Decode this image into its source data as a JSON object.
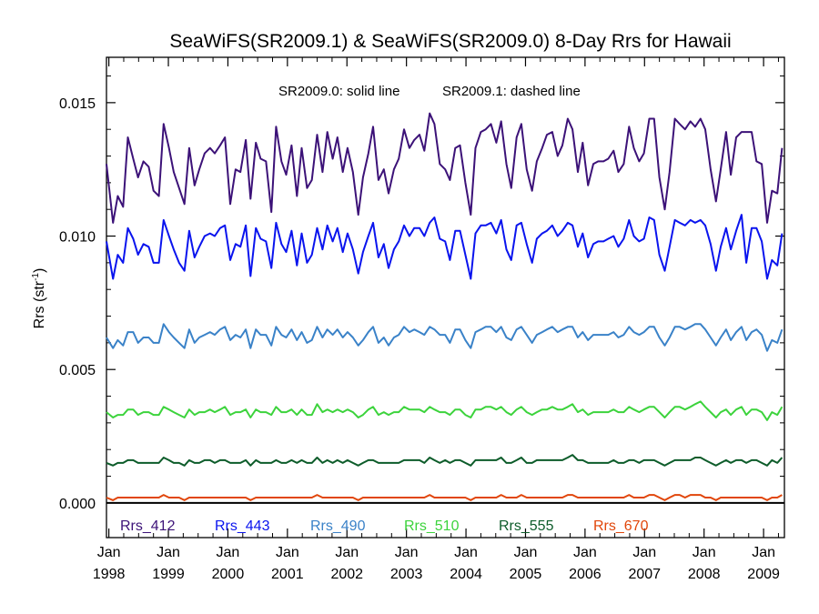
{
  "chart_data": {
    "type": "line",
    "title": "SeaWiFS(SR2009.1) & SeaWiFS(SR2009.0) 8-Day Rrs for Hawaii",
    "ylabel_main": "Rrs (str",
    "ylabel_sup": "-1",
    "ylabel_close": ")",
    "annotation_solid": "SR2009.0: solid line",
    "annotation_dashed": "SR2009.1: dashed line",
    "ylim": [
      -0.0013,
      0.0167
    ],
    "xlim": [
      1997.96,
      2009.35
    ],
    "yticks": [
      {
        "value": 0.0,
        "label": "0.000"
      },
      {
        "value": 0.005,
        "label": "0.005"
      },
      {
        "value": 0.01,
        "label": "0.010"
      },
      {
        "value": 0.015,
        "label": "0.015"
      }
    ],
    "xticks": [
      {
        "value": 1998.0,
        "month": "Jan",
        "year": "1998"
      },
      {
        "value": 1999.0,
        "month": "Jan",
        "year": "1999"
      },
      {
        "value": 2000.0,
        "month": "Jan",
        "year": "2000"
      },
      {
        "value": 2001.0,
        "month": "Jan",
        "year": "2001"
      },
      {
        "value": 2002.0,
        "month": "Jan",
        "year": "2002"
      },
      {
        "value": 2003.0,
        "month": "Jan",
        "year": "2003"
      },
      {
        "value": 2004.0,
        "month": "Jan",
        "year": "2004"
      },
      {
        "value": 2005.0,
        "month": "Jan",
        "year": "2005"
      },
      {
        "value": 2006.0,
        "month": "Jan",
        "year": "2006"
      },
      {
        "value": 2007.0,
        "month": "Jan",
        "year": "2007"
      },
      {
        "value": 2008.0,
        "month": "Jan",
        "year": "2008"
      },
      {
        "value": 2009.0,
        "month": "Jan",
        "year": "2009"
      }
    ],
    "grid": false,
    "legend_placement": "bottom",
    "x": [
      1997.96,
      1998.07,
      1998.15,
      1998.24,
      1998.32,
      1998.41,
      1998.49,
      1998.58,
      1998.67,
      1998.75,
      1998.84,
      1998.92,
      1999.01,
      1999.09,
      1999.18,
      1999.27,
      1999.35,
      1999.44,
      1999.52,
      1999.61,
      1999.7,
      1999.78,
      1999.87,
      1999.95,
      2000.04,
      2000.13,
      2000.21,
      2000.3,
      2000.38,
      2000.47,
      2000.55,
      2000.64,
      2000.73,
      2000.81,
      2000.9,
      2000.98,
      2001.07,
      2001.16,
      2001.24,
      2001.33,
      2001.41,
      2001.5,
      2001.59,
      2001.67,
      2001.76,
      2001.84,
      2001.93,
      2002.01,
      2002.1,
      2002.19,
      2002.27,
      2002.36,
      2002.44,
      2002.53,
      2002.62,
      2002.7,
      2002.79,
      2002.87,
      2002.96,
      2003.05,
      2003.13,
      2003.22,
      2003.3,
      2003.39,
      2003.47,
      2003.56,
      2003.65,
      2003.73,
      2003.82,
      2003.9,
      2003.99,
      2004.08,
      2004.16,
      2004.25,
      2004.33,
      2004.42,
      2004.51,
      2004.59,
      2004.68,
      2004.76,
      2004.85,
      2004.93,
      2005.02,
      2005.11,
      2005.19,
      2005.28,
      2005.36,
      2005.45,
      2005.54,
      2005.62,
      2005.71,
      2005.79,
      2005.88,
      2005.96,
      2006.05,
      2006.14,
      2006.22,
      2006.31,
      2006.39,
      2006.48,
      2006.56,
      2006.65,
      2006.74,
      2006.82,
      2006.91,
      2006.99,
      2007.08,
      2007.16,
      2007.25,
      2007.34,
      2007.42,
      2007.51,
      2007.59,
      2007.68,
      2007.77,
      2007.85,
      2007.94,
      2008.02,
      2008.11,
      2008.2,
      2008.28,
      2008.37,
      2008.45,
      2008.54,
      2008.63,
      2008.71,
      2008.8,
      2008.88,
      2008.97,
      2009.06,
      2009.14,
      2009.23,
      2009.31
    ],
    "series": [
      {
        "name": "Rrs_412",
        "color": "#3c1278",
        "values": [
          0.0127,
          0.0105,
          0.0115,
          0.0111,
          0.0137,
          0.0129,
          0.0122,
          0.0128,
          0.0126,
          0.0117,
          0.0115,
          0.0142,
          0.0133,
          0.0124,
          0.0118,
          0.0112,
          0.0133,
          0.0119,
          0.0125,
          0.0131,
          0.0133,
          0.0131,
          0.0134,
          0.0137,
          0.0112,
          0.0125,
          0.0124,
          0.0136,
          0.0114,
          0.0135,
          0.0129,
          0.0128,
          0.0109,
          0.0141,
          0.0128,
          0.0123,
          0.0134,
          0.0115,
          0.0133,
          0.0118,
          0.0121,
          0.0138,
          0.0124,
          0.0139,
          0.0129,
          0.0137,
          0.0124,
          0.0133,
          0.0124,
          0.0108,
          0.0122,
          0.0131,
          0.0141,
          0.0121,
          0.0125,
          0.0116,
          0.0125,
          0.0129,
          0.014,
          0.0133,
          0.0136,
          0.0138,
          0.0132,
          0.0146,
          0.0142,
          0.0127,
          0.0125,
          0.0121,
          0.0133,
          0.0134,
          0.012,
          0.0108,
          0.0133,
          0.0139,
          0.014,
          0.0142,
          0.0135,
          0.0143,
          0.0127,
          0.0118,
          0.0137,
          0.0142,
          0.0125,
          0.0117,
          0.0128,
          0.0133,
          0.0138,
          0.0139,
          0.013,
          0.0134,
          0.0144,
          0.014,
          0.0124,
          0.0135,
          0.0119,
          0.0127,
          0.0128,
          0.0128,
          0.0129,
          0.0132,
          0.0124,
          0.0127,
          0.0141,
          0.0133,
          0.0128,
          0.0131,
          0.0144,
          0.0144,
          0.0122,
          0.011,
          0.0124,
          0.0144,
          0.0142,
          0.014,
          0.0143,
          0.0141,
          0.0144,
          0.014,
          0.0125,
          0.0113,
          0.0125,
          0.0139,
          0.0123,
          0.0137,
          0.0139,
          0.0139,
          0.0139,
          0.0128,
          0.0127,
          0.0105,
          0.0117,
          0.0116,
          0.0133
        ]
      },
      {
        "name": "Rrs_443",
        "color": "#0a14ee",
        "values": [
          0.0098,
          0.0084,
          0.0093,
          0.009,
          0.0103,
          0.0099,
          0.0093,
          0.0097,
          0.0096,
          0.009,
          0.009,
          0.0106,
          0.01,
          0.0095,
          0.009,
          0.0087,
          0.0102,
          0.0092,
          0.0096,
          0.01,
          0.0101,
          0.01,
          0.0103,
          0.0104,
          0.0091,
          0.0097,
          0.0096,
          0.0104,
          0.0085,
          0.0103,
          0.0099,
          0.0098,
          0.0088,
          0.0105,
          0.0097,
          0.0094,
          0.0102,
          0.0089,
          0.0101,
          0.009,
          0.0093,
          0.0103,
          0.0095,
          0.0104,
          0.0098,
          0.0103,
          0.0094,
          0.0101,
          0.0095,
          0.0086,
          0.0094,
          0.01,
          0.0105,
          0.0092,
          0.0097,
          0.0088,
          0.0095,
          0.0098,
          0.0104,
          0.01,
          0.0103,
          0.0103,
          0.01,
          0.0105,
          0.0107,
          0.0099,
          0.0098,
          0.0091,
          0.0102,
          0.0102,
          0.0093,
          0.0084,
          0.0101,
          0.0104,
          0.0104,
          0.0105,
          0.0101,
          0.0106,
          0.0095,
          0.0091,
          0.0104,
          0.0105,
          0.0097,
          0.009,
          0.0099,
          0.0101,
          0.0102,
          0.0104,
          0.01,
          0.0102,
          0.0105,
          0.0104,
          0.0096,
          0.0101,
          0.0092,
          0.0097,
          0.0098,
          0.0098,
          0.0099,
          0.01,
          0.0096,
          0.0099,
          0.0106,
          0.01,
          0.0098,
          0.0099,
          0.0107,
          0.0106,
          0.0093,
          0.0087,
          0.0096,
          0.0106,
          0.0105,
          0.0104,
          0.0106,
          0.0105,
          0.0106,
          0.0104,
          0.0097,
          0.0087,
          0.0096,
          0.0103,
          0.0095,
          0.0102,
          0.0108,
          0.009,
          0.0103,
          0.0103,
          0.0098,
          0.0084,
          0.0091,
          0.0089,
          0.0101
        ]
      },
      {
        "name": "Rrs_490",
        "color": "#3a82c8",
        "values": [
          0.0062,
          0.0058,
          0.0061,
          0.0059,
          0.0064,
          0.0064,
          0.006,
          0.0062,
          0.0062,
          0.006,
          0.006,
          0.0067,
          0.0064,
          0.0062,
          0.006,
          0.0058,
          0.0065,
          0.006,
          0.0062,
          0.0063,
          0.0064,
          0.0063,
          0.0065,
          0.0066,
          0.0061,
          0.0063,
          0.0062,
          0.0065,
          0.0058,
          0.0065,
          0.0063,
          0.0063,
          0.0059,
          0.0066,
          0.0063,
          0.0062,
          0.0065,
          0.0061,
          0.0064,
          0.006,
          0.0061,
          0.0066,
          0.0062,
          0.0065,
          0.0063,
          0.0065,
          0.0062,
          0.0064,
          0.0062,
          0.0059,
          0.0061,
          0.0064,
          0.0066,
          0.006,
          0.0062,
          0.0059,
          0.0062,
          0.0063,
          0.0066,
          0.0064,
          0.0065,
          0.0064,
          0.0063,
          0.0066,
          0.0065,
          0.0063,
          0.0063,
          0.006,
          0.0065,
          0.0065,
          0.0061,
          0.0058,
          0.0064,
          0.0065,
          0.0066,
          0.0066,
          0.0064,
          0.0066,
          0.0062,
          0.0061,
          0.0065,
          0.0066,
          0.0063,
          0.006,
          0.0063,
          0.0064,
          0.0065,
          0.0066,
          0.0064,
          0.0065,
          0.0066,
          0.0066,
          0.0062,
          0.0064,
          0.0061,
          0.0063,
          0.0063,
          0.0063,
          0.0063,
          0.0064,
          0.0062,
          0.0063,
          0.0066,
          0.0064,
          0.0063,
          0.0064,
          0.0066,
          0.0066,
          0.0062,
          0.0059,
          0.0062,
          0.0066,
          0.0066,
          0.0065,
          0.0066,
          0.0067,
          0.0067,
          0.0065,
          0.0062,
          0.0059,
          0.0062,
          0.0065,
          0.0061,
          0.0064,
          0.0066,
          0.0061,
          0.0064,
          0.0065,
          0.0063,
          0.0057,
          0.0061,
          0.006,
          0.0065
        ]
      },
      {
        "name": "Rrs_510",
        "color": "#3cd33c",
        "values": [
          0.0034,
          0.0032,
          0.0033,
          0.0033,
          0.0035,
          0.0035,
          0.0033,
          0.0034,
          0.0034,
          0.0033,
          0.0033,
          0.0036,
          0.0035,
          0.0034,
          0.0033,
          0.0032,
          0.0035,
          0.0033,
          0.0034,
          0.0034,
          0.0035,
          0.0034,
          0.0035,
          0.0036,
          0.0033,
          0.0034,
          0.0034,
          0.0035,
          0.0032,
          0.0035,
          0.0034,
          0.0034,
          0.0033,
          0.0036,
          0.0034,
          0.0034,
          0.0035,
          0.0033,
          0.0035,
          0.0033,
          0.0033,
          0.0037,
          0.0034,
          0.0035,
          0.0034,
          0.0035,
          0.0034,
          0.0035,
          0.0034,
          0.0032,
          0.0033,
          0.0035,
          0.0036,
          0.0033,
          0.0034,
          0.0033,
          0.0034,
          0.0034,
          0.0036,
          0.0035,
          0.0035,
          0.0035,
          0.0034,
          0.0036,
          0.0035,
          0.0034,
          0.0034,
          0.0033,
          0.0035,
          0.0035,
          0.0033,
          0.0032,
          0.0035,
          0.0035,
          0.0036,
          0.0036,
          0.0035,
          0.0036,
          0.0034,
          0.0033,
          0.0035,
          0.0036,
          0.0034,
          0.0033,
          0.0034,
          0.0035,
          0.0035,
          0.0036,
          0.0035,
          0.0035,
          0.0036,
          0.0037,
          0.0034,
          0.0035,
          0.0033,
          0.0034,
          0.0034,
          0.0034,
          0.0034,
          0.0035,
          0.0034,
          0.0034,
          0.0036,
          0.0035,
          0.0034,
          0.0035,
          0.0036,
          0.0036,
          0.0034,
          0.0032,
          0.0034,
          0.0036,
          0.0036,
          0.0035,
          0.0036,
          0.0037,
          0.0038,
          0.0036,
          0.0034,
          0.0032,
          0.0034,
          0.0035,
          0.0033,
          0.0035,
          0.0036,
          0.0033,
          0.0035,
          0.0035,
          0.0034,
          0.0031,
          0.0034,
          0.0033,
          0.0036
        ]
      },
      {
        "name": "Rrs_555",
        "color": "#0d5c2a",
        "values": [
          0.0015,
          0.0014,
          0.0015,
          0.0015,
          0.0016,
          0.0016,
          0.0015,
          0.0015,
          0.0015,
          0.0015,
          0.0015,
          0.0017,
          0.0016,
          0.0015,
          0.0015,
          0.0014,
          0.0016,
          0.0015,
          0.0015,
          0.0016,
          0.0016,
          0.0015,
          0.0016,
          0.0016,
          0.0015,
          0.0015,
          0.0015,
          0.0016,
          0.0014,
          0.0016,
          0.0015,
          0.0015,
          0.0015,
          0.0016,
          0.0015,
          0.0015,
          0.0016,
          0.0015,
          0.0016,
          0.0015,
          0.0015,
          0.0017,
          0.0015,
          0.0016,
          0.0015,
          0.0016,
          0.0015,
          0.0016,
          0.0015,
          0.0014,
          0.0015,
          0.0016,
          0.0016,
          0.0015,
          0.0015,
          0.0015,
          0.0015,
          0.0015,
          0.0016,
          0.0016,
          0.0016,
          0.0016,
          0.0015,
          0.0017,
          0.0016,
          0.0015,
          0.0016,
          0.0015,
          0.0016,
          0.0016,
          0.0015,
          0.0014,
          0.0016,
          0.0016,
          0.0016,
          0.0016,
          0.0016,
          0.0017,
          0.0015,
          0.0015,
          0.0016,
          0.0017,
          0.0015,
          0.0015,
          0.0016,
          0.0016,
          0.0016,
          0.0016,
          0.0016,
          0.0016,
          0.0017,
          0.0018,
          0.0016,
          0.0016,
          0.0015,
          0.0015,
          0.0015,
          0.0015,
          0.0015,
          0.0016,
          0.0015,
          0.0015,
          0.0016,
          0.0016,
          0.0015,
          0.0016,
          0.0016,
          0.0016,
          0.0015,
          0.0014,
          0.0015,
          0.0016,
          0.0016,
          0.0016,
          0.0016,
          0.0017,
          0.0017,
          0.0016,
          0.0015,
          0.0014,
          0.0015,
          0.0016,
          0.0015,
          0.0016,
          0.0016,
          0.0015,
          0.0016,
          0.0016,
          0.0015,
          0.0014,
          0.0016,
          0.0015,
          0.0017
        ]
      },
      {
        "name": "Rrs_670",
        "color": "#e1460a",
        "values": [
          0.0002,
          0.0001,
          0.0002,
          0.0002,
          0.0002,
          0.0002,
          0.0002,
          0.0002,
          0.0002,
          0.0002,
          0.0002,
          0.0003,
          0.0002,
          0.0002,
          0.0002,
          0.0001,
          0.0002,
          0.0002,
          0.0002,
          0.0002,
          0.0002,
          0.0002,
          0.0002,
          0.0002,
          0.0002,
          0.0002,
          0.0002,
          0.0002,
          0.0001,
          0.0002,
          0.0002,
          0.0002,
          0.0002,
          0.0002,
          0.0002,
          0.0002,
          0.0002,
          0.0002,
          0.0002,
          0.0002,
          0.0002,
          0.0003,
          0.0002,
          0.0002,
          0.0002,
          0.0002,
          0.0002,
          0.0002,
          0.0002,
          0.0001,
          0.0002,
          0.0002,
          0.0002,
          0.0002,
          0.0002,
          0.0002,
          0.0002,
          0.0002,
          0.0002,
          0.0002,
          0.0002,
          0.0002,
          0.0002,
          0.0003,
          0.0002,
          0.0002,
          0.0002,
          0.0002,
          0.0002,
          0.0002,
          0.0002,
          0.0001,
          0.0002,
          0.0002,
          0.0002,
          0.0002,
          0.0002,
          0.0003,
          0.0002,
          0.0002,
          0.0002,
          0.0003,
          0.0002,
          0.0002,
          0.0002,
          0.0002,
          0.0002,
          0.0002,
          0.0002,
          0.0002,
          0.0003,
          0.0003,
          0.0002,
          0.0002,
          0.0002,
          0.0002,
          0.0002,
          0.0002,
          0.0002,
          0.0002,
          0.0002,
          0.0002,
          0.0003,
          0.0002,
          0.0002,
          0.0002,
          0.0003,
          0.0003,
          0.0002,
          0.0001,
          0.0002,
          0.0003,
          0.0003,
          0.0002,
          0.0003,
          0.0003,
          0.0003,
          0.0002,
          0.0002,
          0.0001,
          0.0002,
          0.0002,
          0.0002,
          0.0002,
          0.0002,
          0.0002,
          0.0002,
          0.0002,
          0.0002,
          0.0001,
          0.0002,
          0.0002,
          0.0003
        ]
      }
    ]
  }
}
